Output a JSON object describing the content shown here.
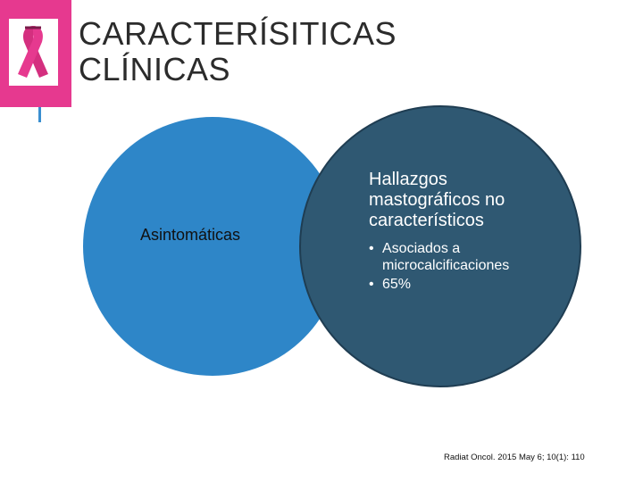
{
  "title": {
    "line1": "CARACTERÍSITICAS",
    "line2": "CLÍNICAS"
  },
  "logo": {
    "icon": "pink-ribbon-icon",
    "background": "#e6398f"
  },
  "venn": {
    "left_circle": {
      "label": "Asintomáticas",
      "color": "#2e86c8"
    },
    "right_circle": {
      "heading_lines": [
        "Hallazgos",
        "mastográficos no",
        "característicos"
      ],
      "bullets": [
        {
          "lines": [
            "Asociados a",
            "microcalcificaciones"
          ]
        },
        {
          "lines": [
            "65%"
          ]
        }
      ],
      "color": "#2f5872"
    }
  },
  "citation": "Radiat Oncol. 2015 May 6; 10(1): 110"
}
